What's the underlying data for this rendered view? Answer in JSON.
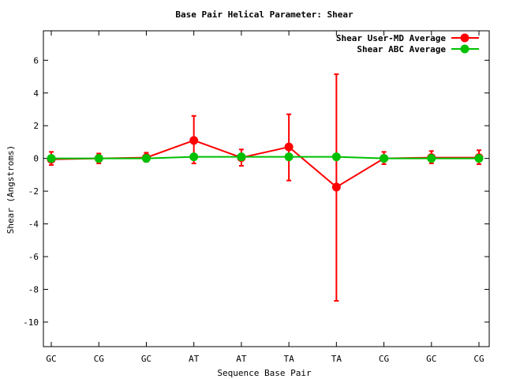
{
  "chart_data": {
    "type": "line",
    "title": "Base Pair Helical Parameter: Shear",
    "xlabel": "Sequence Base Pair",
    "ylabel": "Shear (Angstroms)",
    "categories": [
      "GC",
      "CG",
      "GC",
      "AT",
      "AT",
      "TA",
      "TA",
      "CG",
      "GC",
      "CG"
    ],
    "ylim": [
      -11.5,
      7.8
    ],
    "yticks": [
      -10,
      -8,
      -6,
      -4,
      -2,
      0,
      2,
      4,
      6
    ],
    "legend_position": "top-right",
    "grid": false,
    "series": [
      {
        "name": "Shear User-MD Average",
        "color": "#ff0000",
        "values": [
          -0.05,
          0.0,
          0.05,
          1.1,
          0.05,
          0.7,
          -1.75,
          0.0,
          0.05,
          0.05
        ],
        "error_low": [
          -0.4,
          -0.3,
          -0.2,
          -0.3,
          -0.45,
          -1.35,
          -8.7,
          -0.35,
          -0.3,
          -0.35
        ],
        "error_high": [
          0.4,
          0.3,
          0.35,
          2.6,
          0.55,
          2.7,
          5.15,
          0.4,
          0.45,
          0.5
        ]
      },
      {
        "name": "Shear ABC Average",
        "color": "#00c000",
        "values": [
          0.0,
          0.0,
          0.0,
          0.1,
          0.1,
          0.1,
          0.1,
          0.0,
          0.0,
          0.0
        ]
      }
    ]
  }
}
